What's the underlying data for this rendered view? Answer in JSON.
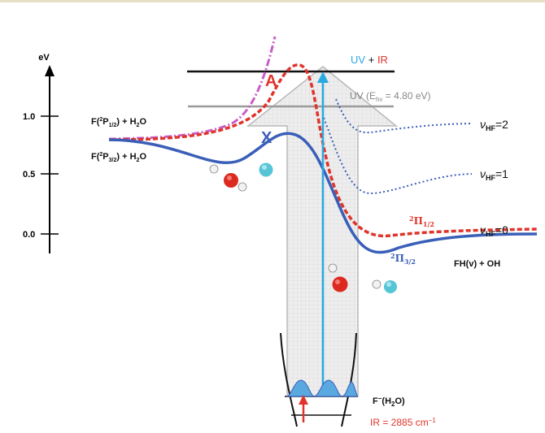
{
  "axis": {
    "unit": "eV",
    "ticks": [
      "1.0",
      "0.5",
      "0.0"
    ]
  },
  "labels": {
    "reactant_upper": "F(2P1/2) + H2O",
    "reactant_lower": "F(2P3/2) + H2O",
    "uv_ir": "UV + IR",
    "uv_energy": "UV (Ehv = 4.80 eV)",
    "state_A": "A",
    "state_X": "X",
    "v_hf_2": "νHF=2",
    "v_hf_1": "νHF=1",
    "v_hf_0": "νHF=0",
    "pi_half": "2Π1/2",
    "pi_three_half": "2Π3/2",
    "products": "FH(v) + OH",
    "anion": "F−(H2O)",
    "ir_energy": "IR = 2885 cm−1"
  },
  "colors": {
    "red": "#e0342b",
    "blue": "#3a5fb8",
    "cyan": "#29a9e0",
    "gray": "#9a9a9a",
    "magenta": "#c85ec8",
    "black": "#111111"
  }
}
